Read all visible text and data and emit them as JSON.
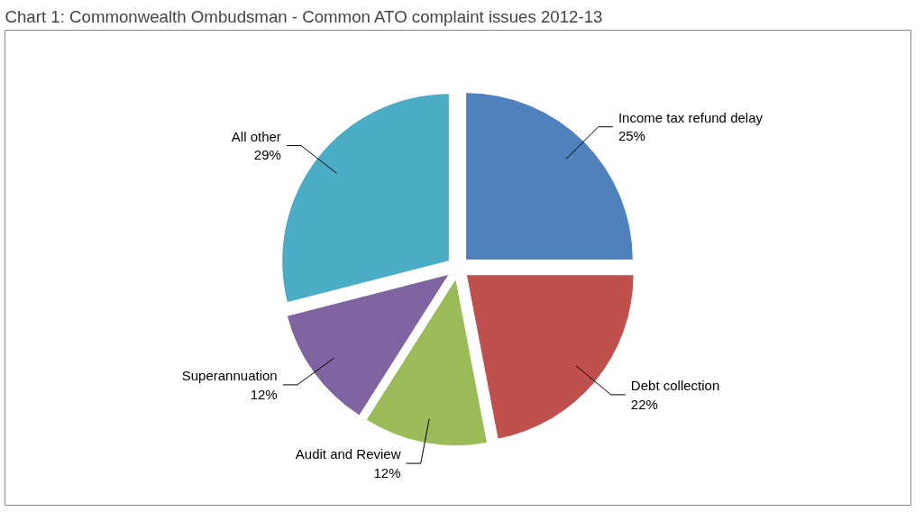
{
  "chart_data": {
    "type": "pie",
    "title": "Chart 1: Commonwealth Ombudsman - Common ATO complaint issues 2012-13",
    "categories": [
      "Income tax refund delay",
      "Debt collection",
      "Audit and Review",
      "Superannuation",
      "All other"
    ],
    "values": [
      25,
      22,
      12,
      12,
      29
    ],
    "colors": [
      "#4f81bd",
      "#c0504d",
      "#9bbb59",
      "#8064a2",
      "#4bacc6"
    ],
    "value_labels": [
      "25%",
      "22%",
      "12%",
      "12%",
      "29%"
    ]
  }
}
